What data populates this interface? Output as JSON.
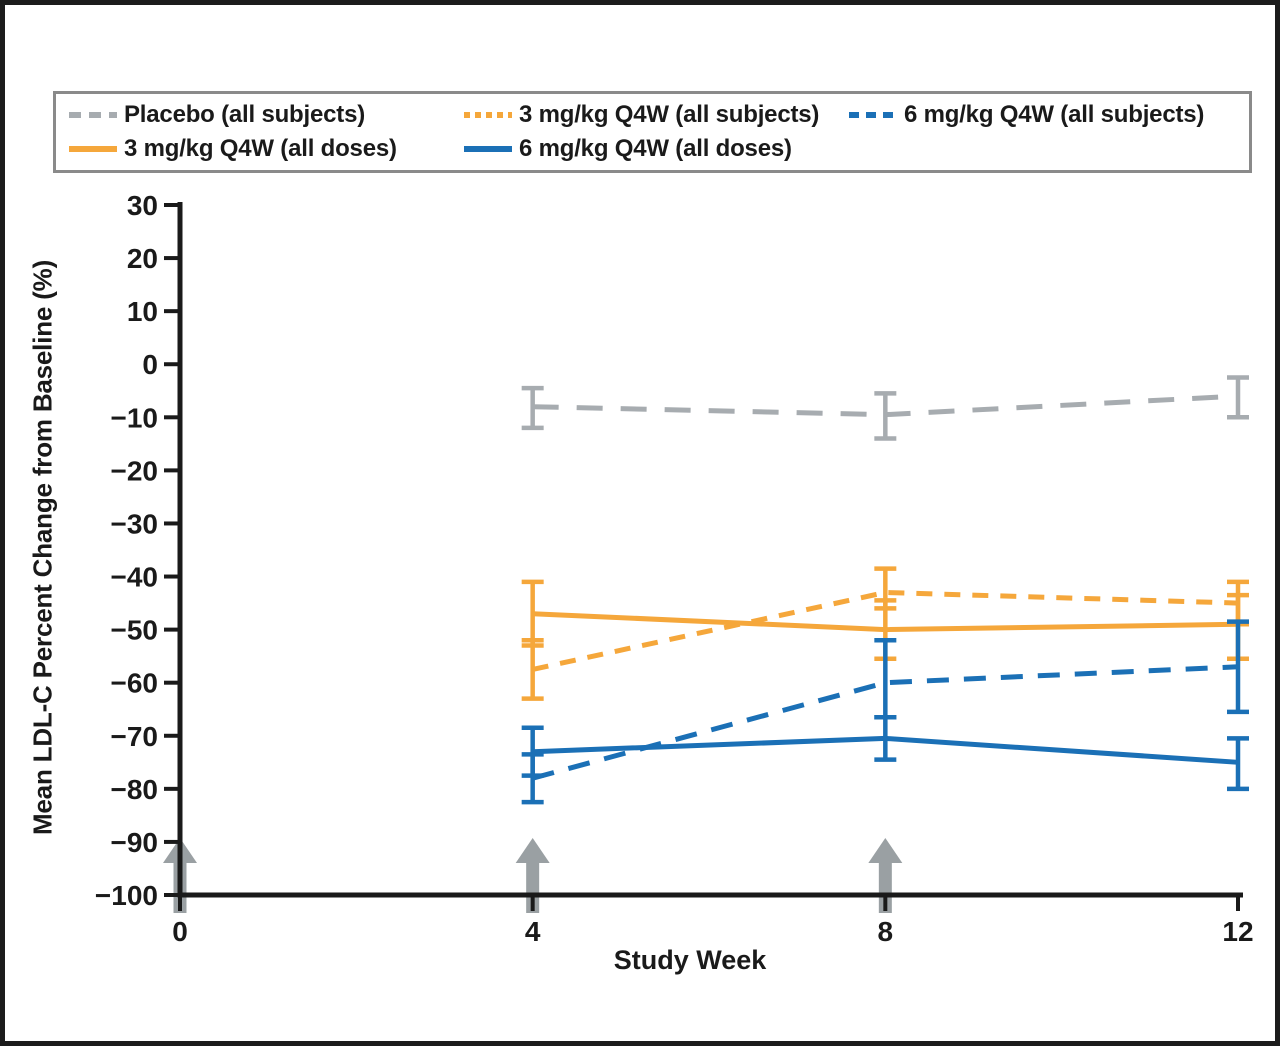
{
  "chart_data": {
    "type": "line",
    "title": "",
    "xlabel": "Study Week",
    "ylabel": "Mean LDL-C Percent Change from Baseline (%)",
    "x": [
      4,
      8,
      12
    ],
    "x_ticks": [
      0,
      4,
      8,
      12
    ],
    "x_tick_labels": [
      "0",
      "4",
      "8",
      "12"
    ],
    "xlim": [
      0,
      12
    ],
    "y_ticks": [
      30,
      20,
      10,
      0,
      -10,
      -20,
      -30,
      -40,
      -50,
      -60,
      -70,
      -80,
      -90,
      -100
    ],
    "y_tick_labels": [
      "30",
      "20",
      "10",
      "0",
      "−10",
      "−20",
      "−30",
      "−40",
      "−50",
      "−60",
      "−70",
      "−80",
      "−90",
      "−100"
    ],
    "ylim": [
      -100,
      30
    ],
    "grid": false,
    "legend_position": "top",
    "dose_arrow_weeks": [
      0,
      4,
      8
    ],
    "colors": {
      "axis": "#1a1a1a",
      "arrow": "#9aa0a3",
      "frame": "#1c1c1c",
      "legend_border": "#8a8a8a",
      "gray": "#a7acb0",
      "orange": "#f5a73b",
      "blue": "#1b70b6"
    },
    "series": [
      {
        "name": "Placebo (all subjects)",
        "color": "#a7acb0",
        "style": "dashed-long",
        "values": [
          -8,
          -9.5,
          -6
        ],
        "err_lo": [
          -12,
          -14,
          -10
        ],
        "err_hi": [
          -4.5,
          -5.5,
          -2.5
        ]
      },
      {
        "name": "3 mg/kg Q4W (all subjects)",
        "color": "#f5a73b",
        "style": "dashed-short",
        "values": [
          -57.5,
          -43,
          -45
        ],
        "err_lo": [
          -63,
          -46,
          -49
        ],
        "err_hi": [
          -52,
          -38.5,
          -41
        ]
      },
      {
        "name": "6 mg/kg Q4W (all subjects)",
        "color": "#1b70b6",
        "style": "dashed",
        "values": [
          -78,
          -60,
          -57
        ],
        "err_lo": [
          -82.5,
          -66.5,
          -65.5
        ],
        "err_hi": [
          -73.5,
          -52,
          -48.5
        ]
      },
      {
        "name": "3 mg/kg Q4W (all doses)",
        "color": "#f5a73b",
        "style": "solid",
        "values": [
          -47,
          -50,
          -49
        ],
        "err_lo": [
          -53,
          -55.5,
          -55.5
        ],
        "err_hi": [
          -41,
          -44.5,
          -43.5
        ]
      },
      {
        "name": "6 mg/kg Q4W (all doses)",
        "color": "#1b70b6",
        "style": "solid",
        "values": [
          -73,
          -70.5,
          -75
        ],
        "err_lo": [
          -77.5,
          -74.5,
          -80
        ],
        "err_hi": [
          -68.5,
          -66.5,
          -70.5
        ]
      }
    ],
    "legend_rows": [
      [
        0,
        1,
        2
      ],
      [
        3,
        4
      ]
    ],
    "draw_order": [
      0,
      1,
      3,
      2,
      4
    ]
  }
}
